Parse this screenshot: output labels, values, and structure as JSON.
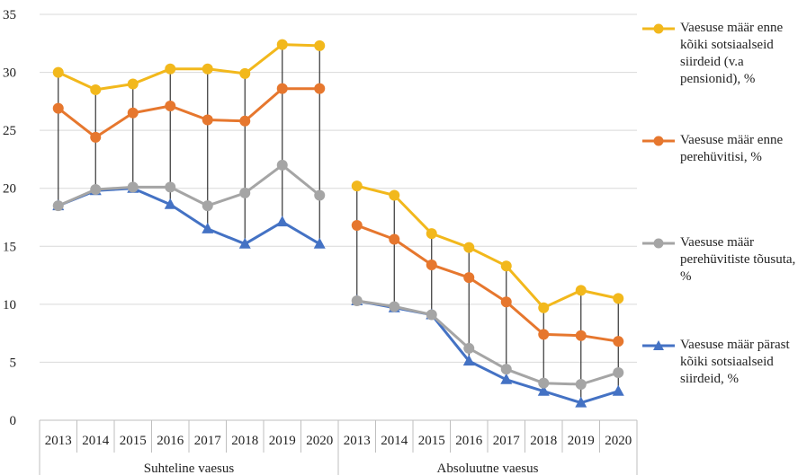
{
  "chart_data": {
    "type": "line",
    "categories": [
      "2013",
      "2014",
      "2015",
      "2016",
      "2017",
      "2018",
      "2019",
      "2020"
    ],
    "groups": [
      "Suhteline vaesus",
      "Absoluutne vaesus"
    ],
    "ylim": [
      0,
      35
    ],
    "yticks": [
      0,
      5,
      10,
      15,
      20,
      25,
      30,
      35
    ],
    "grid": true,
    "drop_lines": true,
    "legend_position": "right",
    "series": [
      {
        "name": "Vaesuse määr enne kõiki sotsiaalseid siirdeid (v.a pensionid), %",
        "color": "#f2b81c",
        "marker": "circle",
        "values": [
          [
            30.0,
            28.5,
            29.0,
            30.3,
            30.3,
            29.9,
            32.4,
            32.3
          ],
          [
            20.2,
            19.4,
            16.1,
            14.9,
            13.3,
            9.7,
            11.2,
            10.5
          ]
        ]
      },
      {
        "name": "Vaesuse määr enne perehüvitisi, %",
        "color": "#e6772e",
        "marker": "circle",
        "values": [
          [
            26.9,
            24.4,
            26.5,
            27.1,
            25.9,
            25.8,
            28.6,
            28.6
          ],
          [
            16.8,
            15.6,
            13.4,
            12.3,
            10.2,
            7.4,
            7.3,
            6.8
          ]
        ]
      },
      {
        "name": "Vaesuse määr perehüvitiste tõusuta, %",
        "color": "#a5a5a5",
        "marker": "circle",
        "values": [
          [
            18.5,
            19.9,
            20.1,
            20.1,
            18.5,
            19.6,
            22.0,
            19.4
          ],
          [
            10.3,
            9.8,
            9.1,
            6.2,
            4.4,
            3.2,
            3.1,
            4.1
          ]
        ]
      },
      {
        "name": "Vaesuse määr pärast kõiki sotsiaalseid siirdeid, %",
        "color": "#4472c4",
        "marker": "triangle",
        "values": [
          [
            18.5,
            19.8,
            20.0,
            18.6,
            16.5,
            15.2,
            17.1,
            15.2
          ],
          [
            10.3,
            9.7,
            9.1,
            5.1,
            3.5,
            2.5,
            1.5,
            2.5
          ]
        ]
      }
    ]
  }
}
